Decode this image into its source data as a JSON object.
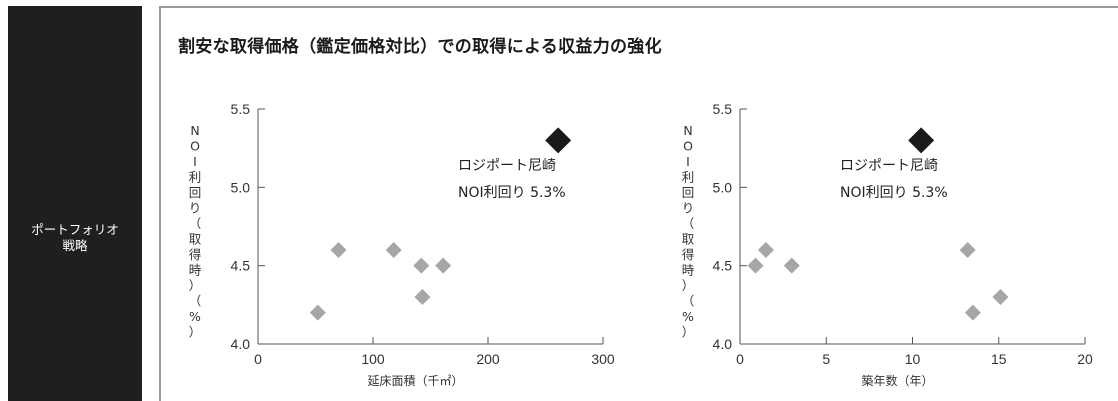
{
  "sidebar": {
    "label_line1": "ポートフォリオ",
    "label_line2": "戦略"
  },
  "title": "割安な取得価格（鑑定価格対比）での取得による収益力の強化",
  "chart_data": [
    {
      "type": "scatter",
      "xlabel": "延床面積（千㎡）",
      "ylabel": "NOI利回り（取得時）（%）",
      "xlim": [
        0,
        300
      ],
      "ylim": [
        4.0,
        5.5
      ],
      "xticks": [
        0,
        100,
        200,
        300
      ],
      "yticks": [
        4.0,
        4.5,
        5.0,
        5.5
      ],
      "ytick_labels": [
        "4.0",
        "4.5",
        "5.0",
        "5.5"
      ],
      "grid": false,
      "series": [
        {
          "color": "#a6a6a6",
          "marker": "diamond",
          "points": [
            [
              52,
              4.2
            ],
            [
              70,
              4.6
            ],
            [
              118,
              4.6
            ],
            [
              142,
              4.5
            ],
            [
              143,
              4.3
            ],
            [
              161,
              4.5
            ]
          ]
        },
        {
          "color": "#1a1a1a",
          "marker": "diamond-large",
          "points": [
            [
              261,
              5.3
            ]
          ]
        }
      ],
      "annotation": {
        "line1": "ロジポート尼崎",
        "line2": "NOI利回り 5.3%"
      }
    },
    {
      "type": "scatter",
      "xlabel": "築年数（年）",
      "ylabel": "NOI利回り（取得時）（%）",
      "xlim": [
        0,
        20
      ],
      "ylim": [
        4.0,
        5.5
      ],
      "xticks": [
        0,
        5,
        10,
        15,
        20
      ],
      "yticks": [
        4.0,
        4.5,
        5.0,
        5.5
      ],
      "ytick_labels": [
        "4.0",
        "4.5",
        "5.0",
        "5.5"
      ],
      "grid": false,
      "series": [
        {
          "color": "#a6a6a6",
          "marker": "diamond",
          "points": [
            [
              0.9,
              4.5
            ],
            [
              1.5,
              4.6
            ],
            [
              3.0,
              4.5
            ],
            [
              13.2,
              4.6
            ],
            [
              13.5,
              4.2
            ],
            [
              15.1,
              4.3
            ]
          ]
        },
        {
          "color": "#1a1a1a",
          "marker": "diamond-large",
          "points": [
            [
              10.5,
              5.3
            ]
          ]
        }
      ],
      "annotation": {
        "line1": "ロジポート尼崎",
        "line2": "NOI利回り 5.3%"
      }
    }
  ]
}
